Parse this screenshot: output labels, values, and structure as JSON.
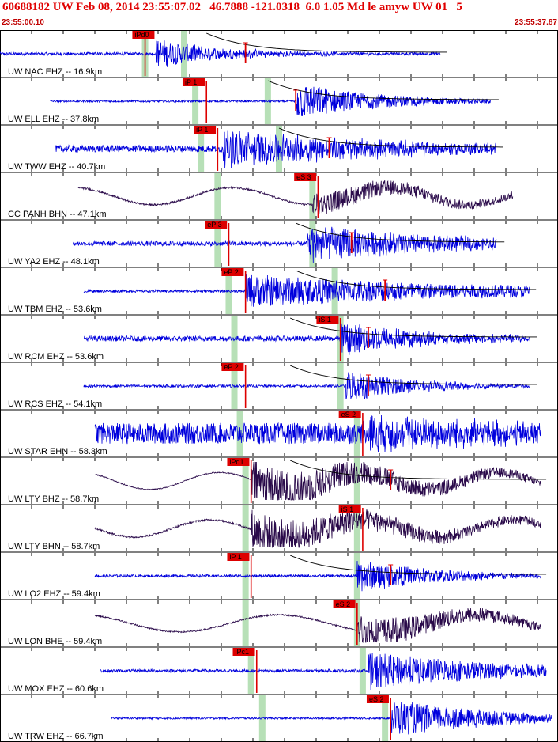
{
  "header": {
    "title": "60688182 UW Feb 08, 2014 23:55:07.02   46.7888 -121.0318  6.0 1.05 Md le amyw UW 01   5",
    "start_time": "23:55:00.10",
    "end_time": "23:55:37.87"
  },
  "chart_data": {
    "type": "line",
    "title": "60688182 UW Feb 08, 2014 23:55:07.02   46.7888 -121.0318  6.0 1.05 Md le amyw UW 01   5",
    "x_range": [
      "23:55:00.10",
      "23:55:37.87"
    ],
    "colors": {
      "ehz": "#0000dd",
      "bh": "#2a0a4a",
      "pick": "#dd0000",
      "window": "#b7e0b7",
      "coda": "#000000"
    },
    "traces": [
      {
        "label": "UW NAC EHZ -- 16.9km",
        "kind": "ehz",
        "start": 0.0,
        "end": 0.79,
        "amp": 0.35,
        "noise": 0.08,
        "smooth": 0,
        "onset": 0.28,
        "decay": 0.12,
        "arrival": 0.26,
        "pick": "iPd0",
        "pick_at": 0.24,
        "second_pick": 0.44,
        "window": 0.26,
        "window2": 0.33,
        "coda": 0.37
      },
      {
        "label": "UW ELL EHZ -- 37.8km",
        "kind": "ehz",
        "start": 0.09,
        "end": 0.88,
        "amp": 0.45,
        "noise": 0.05,
        "smooth": 0,
        "onset": 0.53,
        "decay": 0.15,
        "arrival": 0.37,
        "pick": "iP 1",
        "pick_at": 0.33,
        "second_pick": 0.53,
        "window": 0.35,
        "window2": 0.48,
        "coda": 0.48
      },
      {
        "label": "UW TWW EHZ -- 40.7km",
        "kind": "ehz",
        "start": 0.1,
        "end": 0.89,
        "amp": 0.45,
        "noise": 0.18,
        "smooth": 0,
        "onset": 0.4,
        "decay": 0.3,
        "arrival": 0.39,
        "pick": "iP 1",
        "pick_at": 0.35,
        "second_pick": 0.59,
        "window": 0.36,
        "window2": 0.5,
        "coda": 0.5
      },
      {
        "label": "CC PANH BHN -- 47.1km",
        "kind": "bh",
        "start": 0.14,
        "end": 0.92,
        "amp": 0.28,
        "noise": 0.05,
        "smooth": 1,
        "onset": 0.56,
        "decay": 0.3,
        "arrival": 0.57,
        "pick": "eS 3",
        "pick_at": 0.53,
        "second_pick": null,
        "window": 0.39,
        "window2": 0.56,
        "coda": null
      },
      {
        "label": "UW YA2 EHZ -- 48.1km",
        "kind": "ehz",
        "start": 0.13,
        "end": 0.89,
        "amp": 0.45,
        "noise": 0.12,
        "smooth": 0,
        "onset": 0.55,
        "decay": 0.25,
        "arrival": 0.41,
        "pick": "eP 3",
        "pick_at": 0.37,
        "second_pick": 0.63,
        "window": 0.39,
        "window2": 0.56,
        "coda": 0.53
      },
      {
        "label": "UW TBM EHZ -- 53.6km",
        "kind": "ehz",
        "start": 0.15,
        "end": 0.95,
        "amp": 0.4,
        "noise": 0.07,
        "smooth": 0,
        "onset": 0.44,
        "decay": 0.45,
        "arrival": 0.44,
        "pick": "eP 2",
        "pick_at": 0.4,
        "second_pick": 0.69,
        "window": 0.41,
        "window2": 0.6,
        "coda": 0.53
      },
      {
        "label": "UW RCM EHZ -- 53.6km",
        "kind": "ehz",
        "start": 0.15,
        "end": 0.95,
        "amp": 0.4,
        "noise": 0.14,
        "smooth": 0,
        "onset": 0.61,
        "decay": 0.15,
        "arrival": 0.61,
        "pick": "iS 1",
        "pick_at": 0.57,
        "second_pick": 0.66,
        "window": 0.42,
        "window2": 0.61,
        "coda": 0.52
      },
      {
        "label": "UW RCS EHZ -- 54.1km",
        "kind": "ehz",
        "start": 0.15,
        "end": 0.95,
        "amp": 0.4,
        "noise": 0.07,
        "smooth": 0,
        "onset": 0.62,
        "decay": 0.12,
        "arrival": 0.44,
        "pick": "eP 2",
        "pick_at": 0.4,
        "second_pick": 0.66,
        "window": 0.42,
        "window2": 0.61,
        "coda": 0.52
      },
      {
        "label": "UW STAR EHN -- 58.3km",
        "kind": "ehz",
        "start": 0.17,
        "end": 0.97,
        "amp": 0.4,
        "noise": 0.55,
        "smooth": 0,
        "onset": 0.65,
        "decay": 0.2,
        "arrival": 0.65,
        "pick": "eS 2",
        "pick_at": 0.61,
        "second_pick": null,
        "window": 0.43,
        "window2": 0.64,
        "coda": null
      },
      {
        "label": "UW LTY BHZ -- 58.7km",
        "kind": "bh",
        "start": 0.17,
        "end": 0.97,
        "amp": 0.55,
        "noise": 0.03,
        "smooth": 1,
        "onset": 0.45,
        "decay": 0.3,
        "arrival": 0.45,
        "pick": "iPd1",
        "pick_at": 0.41,
        "second_pick": 0.7,
        "window": 0.44,
        "window2": 0.64,
        "coda": 0.52
      },
      {
        "label": "UW LTY BHN -- 58.7km",
        "kind": "bh",
        "start": 0.17,
        "end": 0.97,
        "amp": 0.5,
        "noise": 0.05,
        "smooth": 1,
        "onset": 0.45,
        "decay": 0.3,
        "arrival": 0.65,
        "pick": "iS 1",
        "pick_at": 0.61,
        "second_pick": null,
        "window": 0.44,
        "window2": 0.64,
        "coda": null
      },
      {
        "label": "UW LO2 EHZ -- 59.4km",
        "kind": "ehz",
        "start": 0.17,
        "end": 0.97,
        "amp": 0.4,
        "noise": 0.07,
        "smooth": 0,
        "onset": 0.64,
        "decay": 0.15,
        "arrival": 0.45,
        "pick": "iP 1",
        "pick_at": 0.41,
        "second_pick": 0.7,
        "window": 0.44,
        "window2": 0.64,
        "coda": 0.52
      },
      {
        "label": "UW LON BHE -- 59.4km",
        "kind": "bh",
        "start": 0.17,
        "end": 0.97,
        "amp": 0.4,
        "noise": 0.04,
        "smooth": 1,
        "onset": 0.64,
        "decay": 0.25,
        "arrival": 0.64,
        "pick": "eS 2",
        "pick_at": 0.6,
        "second_pick": null,
        "window": 0.44,
        "window2": 0.64,
        "coda": null
      },
      {
        "label": "UW MOX EHZ -- 60.6km",
        "kind": "ehz",
        "start": 0.18,
        "end": 0.98,
        "amp": 0.45,
        "noise": 0.08,
        "smooth": 0,
        "onset": 0.66,
        "decay": 0.25,
        "arrival": 0.46,
        "pick": "iPc1",
        "pick_at": 0.42,
        "second_pick": null,
        "window": 0.45,
        "window2": 0.65,
        "coda": null
      },
      {
        "label": "UW TRW EHZ -- 66.7km",
        "kind": "ehz",
        "start": 0.2,
        "end": 0.99,
        "amp": 0.45,
        "noise": 0.05,
        "smooth": 0,
        "onset": 0.7,
        "decay": 0.2,
        "arrival": 0.7,
        "pick": "eS 2",
        "pick_at": 0.66,
        "second_pick": null,
        "window": 0.47,
        "window2": 0.69,
        "coda": null
      }
    ]
  }
}
